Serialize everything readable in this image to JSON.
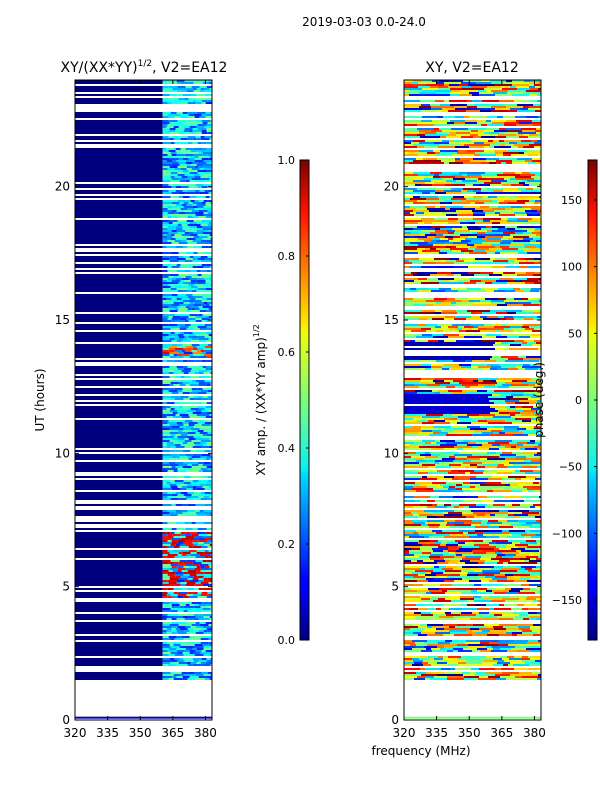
{
  "figure_title": "2019-03-03 0.0-24.0",
  "chart_data": [
    {
      "type": "heatmap",
      "title_main": "XY/(XX*YY)",
      "title_sup": "1/2",
      "title_tail": ", V2=EA12",
      "xlabel": "",
      "ylabel": "UT (hours)",
      "xlim": [
        320,
        383
      ],
      "ylim": [
        0,
        24
      ],
      "xticks": [
        320,
        335,
        350,
        365,
        380
      ],
      "yticks": [
        0,
        5,
        10,
        15,
        20
      ],
      "data_coverage_hours": [
        1.5,
        24
      ],
      "colorbar": {
        "label": "XY amp. / (XX*YY amp)",
        "label_sup": "1/2",
        "range": [
          0.0,
          1.0
        ],
        "ticks": [
          "0.0",
          "0.2",
          "0.4",
          "0.6",
          "0.8",
          "1.0"
        ],
        "colormap": "jet"
      }
    },
    {
      "type": "heatmap",
      "title": "XY, V2=EA12",
      "xlabel": "frequency (MHz)",
      "ylabel": "",
      "xlim": [
        320,
        383
      ],
      "ylim": [
        0,
        24
      ],
      "xticks": [
        320,
        335,
        350,
        365,
        380
      ],
      "yticks": [
        0,
        5,
        10,
        15,
        20
      ],
      "data_coverage_hours": [
        1.5,
        24
      ],
      "colorbar": {
        "label": "phase (deg.)",
        "range": [
          -180,
          180
        ],
        "ticks": [
          "−150",
          "−100",
          "−50",
          "0",
          "50",
          "100",
          "150"
        ],
        "colormap": "jet"
      }
    }
  ]
}
